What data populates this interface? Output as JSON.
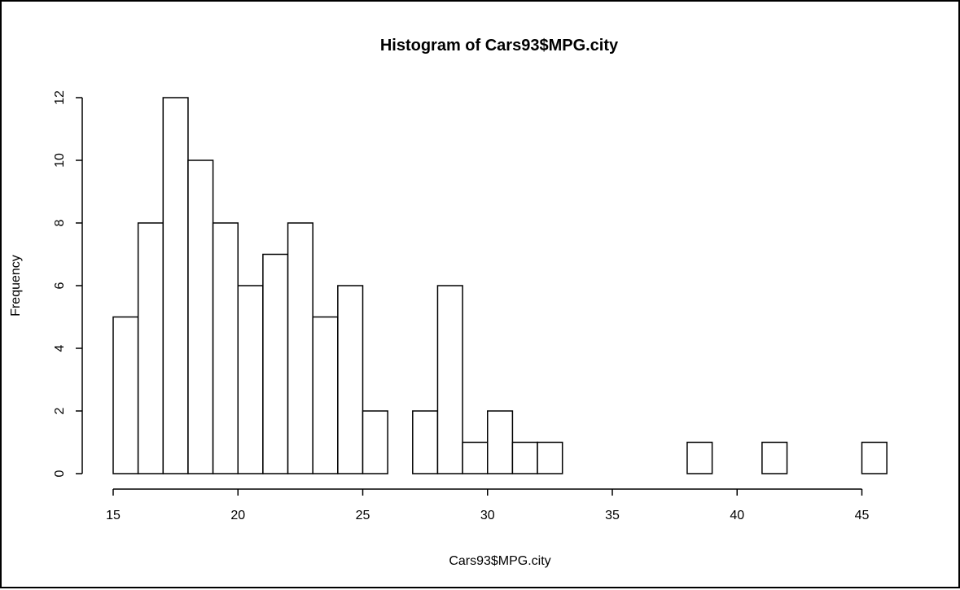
{
  "chart_data": {
    "type": "bar",
    "title": "Histogram of Cars93$MPG.city",
    "xlabel": "Cars93$MPG.city",
    "ylabel": "Frequency",
    "bins": [
      {
        "from": 15,
        "to": 16,
        "count": 5
      },
      {
        "from": 16,
        "to": 17,
        "count": 8
      },
      {
        "from": 17,
        "to": 18,
        "count": 12
      },
      {
        "from": 18,
        "to": 19,
        "count": 10
      },
      {
        "from": 19,
        "to": 20,
        "count": 8
      },
      {
        "from": 20,
        "to": 21,
        "count": 6
      },
      {
        "from": 21,
        "to": 22,
        "count": 7
      },
      {
        "from": 22,
        "to": 23,
        "count": 8
      },
      {
        "from": 23,
        "to": 24,
        "count": 5
      },
      {
        "from": 24,
        "to": 25,
        "count": 6
      },
      {
        "from": 25,
        "to": 26,
        "count": 2
      },
      {
        "from": 26,
        "to": 27,
        "count": 0
      },
      {
        "from": 27,
        "to": 28,
        "count": 2
      },
      {
        "from": 28,
        "to": 29,
        "count": 6
      },
      {
        "from": 29,
        "to": 30,
        "count": 1
      },
      {
        "from": 30,
        "to": 31,
        "count": 2
      },
      {
        "from": 31,
        "to": 32,
        "count": 1
      },
      {
        "from": 32,
        "to": 33,
        "count": 1
      },
      {
        "from": 33,
        "to": 34,
        "count": 0
      },
      {
        "from": 34,
        "to": 35,
        "count": 0
      },
      {
        "from": 35,
        "to": 36,
        "count": 0
      },
      {
        "from": 36,
        "to": 37,
        "count": 0
      },
      {
        "from": 37,
        "to": 38,
        "count": 0
      },
      {
        "from": 38,
        "to": 39,
        "count": 1
      },
      {
        "from": 39,
        "to": 40,
        "count": 0
      },
      {
        "from": 40,
        "to": 41,
        "count": 0
      },
      {
        "from": 41,
        "to": 42,
        "count": 1
      },
      {
        "from": 42,
        "to": 43,
        "count": 0
      },
      {
        "from": 43,
        "to": 44,
        "count": 0
      },
      {
        "from": 44,
        "to": 45,
        "count": 0
      },
      {
        "from": 45,
        "to": 46,
        "count": 1
      }
    ],
    "xlim": [
      15,
      46
    ],
    "ylim": [
      0,
      12
    ],
    "x_ticks": [
      15,
      20,
      25,
      30,
      35,
      40,
      45
    ],
    "y_ticks": [
      0,
      2,
      4,
      6,
      8,
      10,
      12
    ],
    "grid": false,
    "bar_fill": "#ffffff",
    "bar_stroke": "#000000"
  }
}
